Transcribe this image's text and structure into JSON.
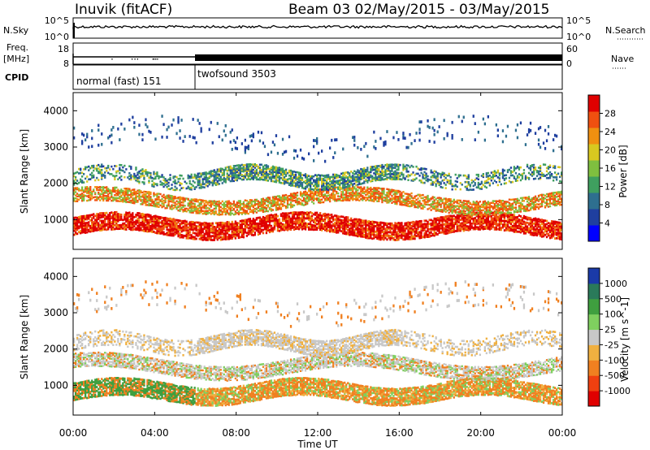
{
  "header": {
    "station": "Inuvik (fitACF)",
    "beam_title": "Beam 03 02/May/2015 - 03/May/2015"
  },
  "sky_panel": {
    "left_label": "N.Sky",
    "tick_top": "10^5",
    "tick_bottom": "10^0",
    "right_tick_top": "10^5",
    "right_tick_bottom": "10^0",
    "right_label": "N.Search"
  },
  "freq_panel": {
    "left_label_1": "Freq.",
    "left_label_2": "[MHz]",
    "tick_top": "18",
    "tick_bottom": "8",
    "right_tick_top": "60",
    "right_tick_bottom": "0",
    "right_label": "Nave"
  },
  "cpid_panel": {
    "label": "CPID",
    "mode_1": "normal (fast) 151",
    "mode_2": "twofsound 3503"
  },
  "x_axis": {
    "label": "Time UT",
    "ticks": [
      "00:00",
      "04:00",
      "08:00",
      "12:00",
      "16:00",
      "20:00",
      "00:00"
    ]
  },
  "power_panel": {
    "ylabel": "Slant Range [km]",
    "yticks": [
      "1000",
      "2000",
      "3000",
      "4000"
    ],
    "colorbar_label": "Power [dB]",
    "colorbar_ticks": [
      "28",
      "24",
      "20",
      "16",
      "12",
      "8",
      "4"
    ],
    "colors": [
      "#0000ff",
      "#1f3f9f",
      "#2e6f8f",
      "#3f9f5f",
      "#7fbf3f",
      "#d8c820",
      "#f09010",
      "#f05010",
      "#e00000"
    ]
  },
  "velocity_panel": {
    "ylabel": "Slant Range [km]",
    "yticks": [
      "1000",
      "2000",
      "3000",
      "4000"
    ],
    "colorbar_label": "Velocity [m s^-1]",
    "colorbar_ticks": [
      "1000",
      "500",
      "100",
      "25",
      "-25",
      "-100",
      "-500",
      "-1000"
    ],
    "colors": [
      "#1a3aa8",
      "#2a7a5a",
      "#3f9f3f",
      "#7fcf5f",
      "#c8c8c8",
      "#f0b040",
      "#f08020",
      "#f04010",
      "#e00000"
    ]
  },
  "chart_data": {
    "type": "heatmap",
    "x_range_hours": [
      0,
      24
    ],
    "y_range_km": [
      180,
      4500
    ],
    "series": [
      {
        "name": "Power [dB]",
        "clim": [
          0,
          30
        ]
      },
      {
        "name": "Velocity [m s^-1]",
        "clim": [
          -1000,
          1000
        ]
      }
    ]
  }
}
